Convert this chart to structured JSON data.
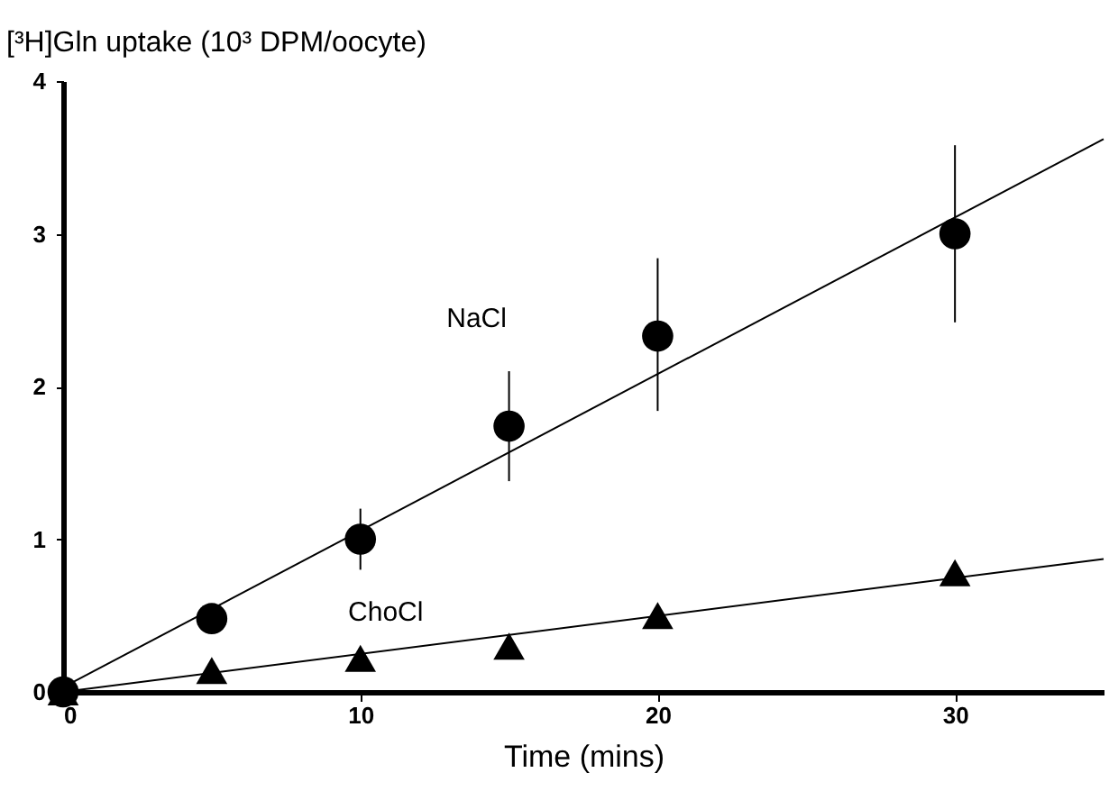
{
  "chart_data": {
    "type": "scatter",
    "xlabel": "Time (mins)",
    "ylabel": "[³H]Gln uptake (10³ DPM/oocyte)",
    "xlim": [
      0,
      35
    ],
    "ylim": [
      0,
      4
    ],
    "xticks": [
      0,
      10,
      20,
      30
    ],
    "yticks": [
      0,
      1,
      2,
      3,
      4
    ],
    "grid": false,
    "series": [
      {
        "name": "NaCl",
        "color": "#000000",
        "marker": "circle",
        "x": [
          0,
          5,
          10,
          15,
          20,
          30
        ],
        "values": [
          0,
          0.48,
          1.0,
          1.74,
          2.33,
          3.0
        ],
        "errors": [
          null,
          null,
          [
            0.8,
            1.2
          ],
          [
            1.38,
            2.1
          ],
          [
            1.84,
            2.84
          ],
          [
            2.42,
            3.58
          ]
        ]
      },
      {
        "name": "ChoCl",
        "color": "#000000",
        "marker": "triangle",
        "x": [
          0,
          5,
          10,
          15,
          20,
          30
        ],
        "values": [
          0,
          0.14,
          0.22,
          0.3,
          0.5,
          0.78
        ],
        "errors": [
          null,
          null,
          null,
          null,
          null,
          null
        ]
      },
      {
        "type": "line",
        "color": "#000000",
        "x": [
          0,
          35
        ],
        "values": [
          0.03,
          3.62
        ]
      },
      {
        "type": "line",
        "color": "#000000",
        "x": [
          0,
          35
        ],
        "values": [
          0,
          0.87
        ]
      }
    ]
  }
}
